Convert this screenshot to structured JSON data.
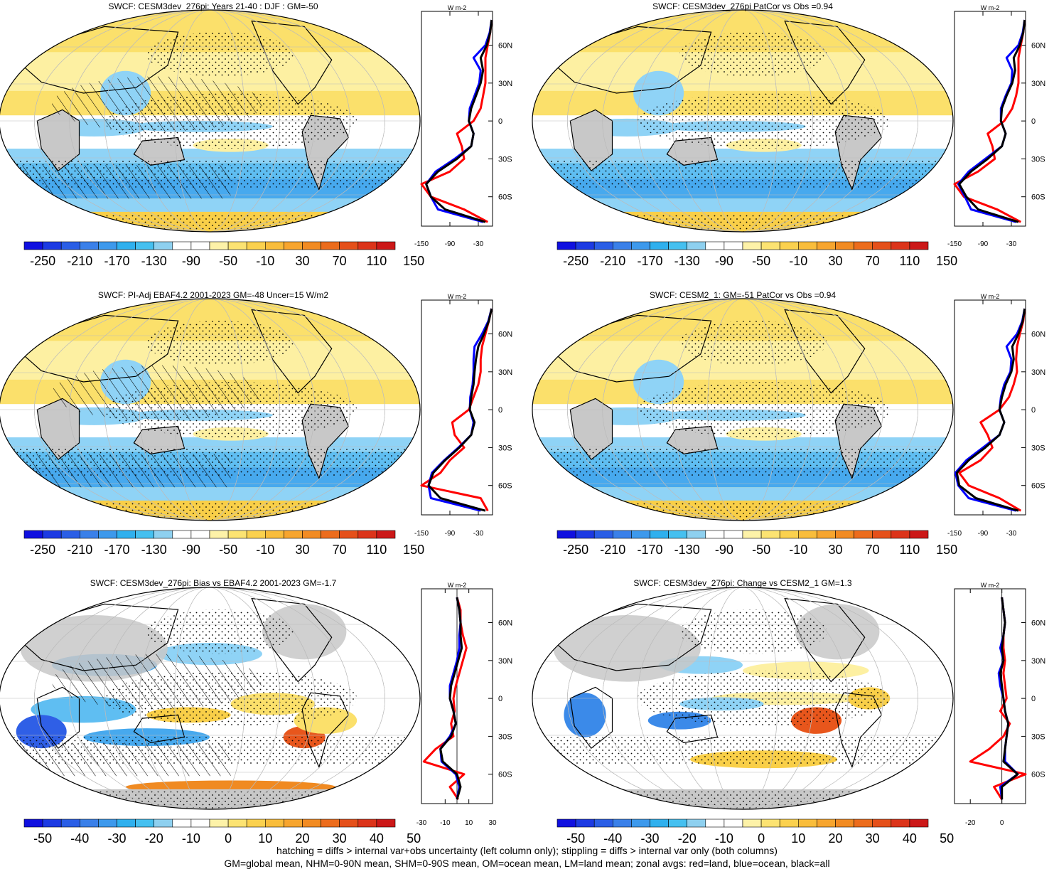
{
  "footer": {
    "line1": "hatching = diffs > internal var+obs uncertainty (left column only); stippling = diffs > internal var only (both columns)",
    "line2": "GM=global mean, NHM=0-90N mean, SHM=0-90S mean, OM=ocean mean, LM=land mean; zonal avgs: red=land, blue=ocean, black=all"
  },
  "colors": {
    "land_line": "#ff0000",
    "ocean_line": "#0000ff",
    "all_line": "#000000",
    "missing_land": "#c8c8c8"
  },
  "chart_data": [
    {
      "type": "heatmap",
      "title": "SWCF: CESM3dev_276pi: Years 21-40 : DJF : GM=-50",
      "colorbar_labels": [
        "-250",
        "-210",
        "-170",
        "-130",
        "-90",
        "-50",
        "-10",
        "30",
        "70",
        "110",
        "150"
      ],
      "zonal": {
        "unit": "W m-2",
        "xlim": [
          -150,
          0
        ],
        "x_ticks": [
          "-150",
          "-90",
          "-30"
        ],
        "y_ticks": [
          "60N",
          "30N",
          "0",
          "30S",
          "60S"
        ],
        "lat": [
          80,
          70,
          60,
          50,
          40,
          30,
          20,
          10,
          0,
          -10,
          -20,
          -30,
          -40,
          -50,
          -60,
          -70,
          -80
        ],
        "all": [
          -2,
          -5,
          -12,
          -25,
          -20,
          -25,
          -35,
          -45,
          -50,
          -40,
          -45,
          -75,
          -115,
          -140,
          -130,
          -100,
          -15
        ],
        "land": [
          -2,
          -5,
          -10,
          -15,
          -15,
          -15,
          -20,
          -25,
          -40,
          -75,
          -65,
          -60,
          -90,
          -150,
          -130,
          -60,
          -10
        ],
        "ocean": [
          -2,
          -6,
          -15,
          -40,
          -25,
          -28,
          -38,
          -48,
          -50,
          -40,
          -45,
          -80,
          -120,
          -140,
          -130,
          -115,
          -20
        ]
      }
    },
    {
      "type": "heatmap",
      "title": "SWCF: CESM3dev_276pi PatCor vs Obs =0.94",
      "colorbar_labels": [
        "-250",
        "-210",
        "-170",
        "-130",
        "-90",
        "-50",
        "-10",
        "30",
        "70",
        "110",
        "150"
      ],
      "zonal": {
        "unit": "W m-2",
        "xlim": [
          -150,
          0
        ],
        "x_ticks": [
          "-150",
          "-90",
          "-30"
        ],
        "y_ticks": [
          "60N",
          "30N",
          "0",
          "30S",
          "60S"
        ],
        "lat": [
          80,
          70,
          60,
          50,
          40,
          30,
          20,
          10,
          0,
          -10,
          -20,
          -30,
          -40,
          -50,
          -60,
          -70,
          -80
        ],
        "all": [
          -2,
          -5,
          -12,
          -25,
          -22,
          -28,
          -40,
          -50,
          -52,
          -42,
          -50,
          -80,
          -115,
          -140,
          -125,
          -100,
          -15
        ],
        "land": [
          -2,
          -5,
          -10,
          -15,
          -15,
          -15,
          -20,
          -28,
          -45,
          -80,
          -70,
          -65,
          -100,
          -150,
          -130,
          -60,
          -10
        ],
        "ocean": [
          -2,
          -6,
          -15,
          -40,
          -28,
          -30,
          -42,
          -52,
          -52,
          -42,
          -50,
          -85,
          -120,
          -142,
          -128,
          -115,
          -20
        ]
      }
    },
    {
      "type": "heatmap",
      "title": "SWCF: PI-Adj EBAF4.2 2001-2023 GM=-48 Uncer=15 W/m2",
      "colorbar_labels": [
        "-250",
        "-210",
        "-170",
        "-130",
        "-90",
        "-50",
        "-10",
        "30",
        "70",
        "110",
        "150"
      ],
      "zonal": {
        "unit": "W m-2",
        "xlim": [
          -150,
          0
        ],
        "x_ticks": [
          "-150",
          "-90",
          "-30"
        ],
        "y_ticks": [
          "60N",
          "30N",
          "0",
          "30S",
          "60S"
        ],
        "lat": [
          80,
          70,
          60,
          50,
          40,
          30,
          20,
          10,
          0,
          -10,
          -20,
          -30,
          -40,
          -50,
          -60,
          -70,
          -80
        ],
        "all": [
          -2,
          -8,
          -18,
          -30,
          -35,
          -38,
          -40,
          -45,
          -48,
          -38,
          -45,
          -70,
          -100,
          -125,
          -135,
          -110,
          -15
        ],
        "land": [
          -2,
          -8,
          -15,
          -22,
          -25,
          -25,
          -30,
          -40,
          -50,
          -85,
          -80,
          -60,
          -90,
          -110,
          -150,
          -25,
          -10
        ],
        "ocean": [
          -2,
          -9,
          -22,
          -38,
          -40,
          -40,
          -42,
          -47,
          -48,
          -40,
          -45,
          -72,
          -102,
          -128,
          -135,
          -130,
          -25
        ]
      }
    },
    {
      "type": "heatmap",
      "title": "SWCF: CESM2_1: GM=-51 PatCor vs Obs =0.94",
      "colorbar_labels": [
        "-250",
        "-210",
        "-170",
        "-130",
        "-90",
        "-50",
        "-10",
        "30",
        "70",
        "110",
        "150"
      ],
      "zonal": {
        "unit": "W m-2",
        "xlim": [
          -150,
          0
        ],
        "x_ticks": [
          "-150",
          "-90",
          "-30"
        ],
        "y_ticks": [
          "60N",
          "30N",
          "0",
          "30S",
          "60S"
        ],
        "lat": [
          80,
          70,
          60,
          50,
          40,
          30,
          20,
          10,
          0,
          -10,
          -20,
          -30,
          -40,
          -50,
          -60,
          -70,
          -80
        ],
        "all": [
          -2,
          -6,
          -15,
          -28,
          -25,
          -30,
          -42,
          -50,
          -55,
          -45,
          -55,
          -85,
          -120,
          -145,
          -140,
          -105,
          -15
        ],
        "land": [
          -2,
          -5,
          -12,
          -18,
          -20,
          -18,
          -25,
          -35,
          -55,
          -95,
          -80,
          -70,
          -95,
          -140,
          -120,
          -55,
          -10
        ],
        "ocean": [
          -2,
          -7,
          -18,
          -40,
          -30,
          -32,
          -45,
          -52,
          -55,
          -45,
          -55,
          -90,
          -125,
          -148,
          -142,
          -120,
          -20
        ]
      }
    },
    {
      "type": "heatmap",
      "title": "SWCF: CESM3dev_276pi: Bias vs EBAF4.2 2001-2023 GM=-1.7",
      "colorbar_labels": [
        "-50",
        "-40",
        "-30",
        "-20",
        "-10",
        "0",
        "10",
        "20",
        "30",
        "40",
        "50"
      ],
      "zonal": {
        "unit": "W m-2",
        "xlim": [
          -30,
          30
        ],
        "x_ticks": [
          "-30",
          "-10",
          "10",
          "30"
        ],
        "y_ticks": [
          "60N",
          "30N",
          "0",
          "30S",
          "60S"
        ],
        "lat": [
          80,
          70,
          60,
          50,
          40,
          30,
          20,
          10,
          0,
          -10,
          -20,
          -30,
          -40,
          -50,
          -60,
          -70,
          -80
        ],
        "all": [
          0,
          2,
          3,
          3,
          4,
          1,
          -2,
          -5,
          -6,
          -3,
          -1,
          -5,
          -14,
          -12,
          0,
          3,
          0
        ],
        "land": [
          0,
          3,
          3,
          5,
          8,
          5,
          2,
          -1,
          -3,
          -2,
          -5,
          -3,
          -18,
          -28,
          6,
          -6,
          1
        ],
        "ocean": [
          0,
          2,
          3,
          2,
          2,
          0,
          -3,
          -6,
          -6,
          -3,
          -1,
          -6,
          -14,
          -13,
          -1,
          2,
          0
        ]
      }
    },
    {
      "type": "heatmap",
      "title": "SWCF: CESM3dev_276pi: Change vs CESM2_1 GM=1.3",
      "colorbar_labels": [
        "-50",
        "-40",
        "-30",
        "-20",
        "-10",
        "0",
        "10",
        "20",
        "30",
        "40",
        "50"
      ],
      "zonal": {
        "unit": "W m-2",
        "xlim": [
          -30,
          15
        ],
        "x_ticks": [
          "-20",
          "0"
        ],
        "y_ticks": [
          "60N",
          "30N",
          "0",
          "30S",
          "60S"
        ],
        "lat": [
          80,
          70,
          60,
          50,
          40,
          30,
          20,
          10,
          0,
          -10,
          -20,
          -30,
          -40,
          -50,
          -60,
          -70,
          -80
        ],
        "all": [
          0,
          1,
          2,
          1,
          0,
          1,
          -1,
          0,
          1,
          2,
          4,
          3,
          2,
          1,
          10,
          0,
          0
        ],
        "land": [
          0,
          1,
          2,
          1,
          1,
          2,
          1,
          2,
          3,
          -1,
          5,
          1,
          -8,
          -20,
          15,
          -5,
          0
        ],
        "ocean": [
          0,
          1,
          2,
          1,
          -1,
          1,
          -2,
          -1,
          1,
          2,
          4,
          3,
          2,
          2,
          10,
          -1,
          0
        ]
      }
    }
  ]
}
